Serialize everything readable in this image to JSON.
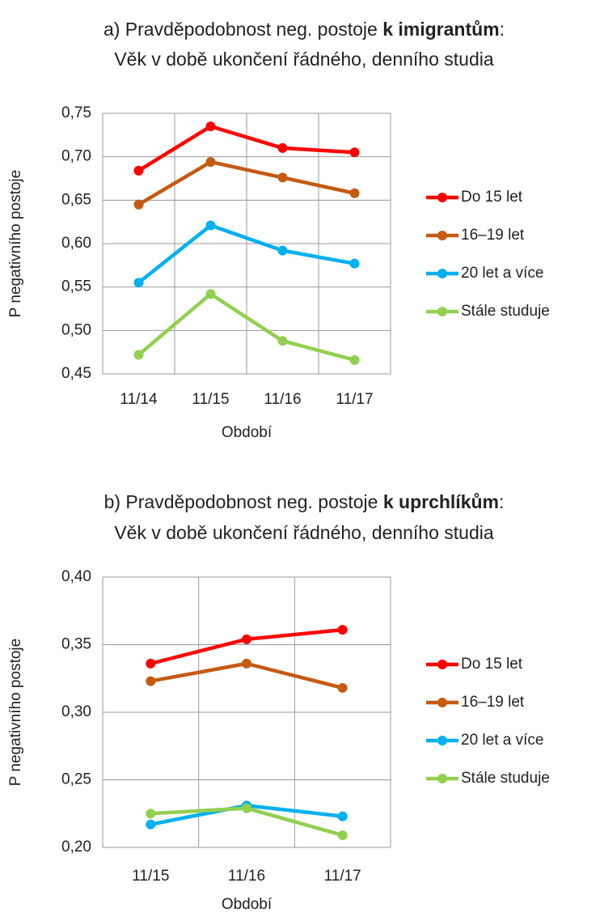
{
  "chart_data": [
    {
      "type": "line",
      "title": [
        "a) Pravděpodobnost neg. postoje ",
        "k imigrantům",
        ":"
      ],
      "subtitle": "Věk v době ukončení řádného, denního studia",
      "x_label": "Období",
      "y_label": "P negativního postoje",
      "categories": [
        "11/14",
        "11/15",
        "11/16",
        "11/17"
      ],
      "ylim": [
        0.45,
        0.75
      ],
      "yticks": [
        {
          "value": 0.45,
          "label": "0,45"
        },
        {
          "value": 0.5,
          "label": "0,50"
        },
        {
          "value": 0.55,
          "label": "0,55"
        },
        {
          "value": 0.6,
          "label": "0,60"
        },
        {
          "value": 0.65,
          "label": "0,65"
        },
        {
          "value": 0.7,
          "label": "0,70"
        },
        {
          "value": 0.75,
          "label": "0,75"
        }
      ],
      "grid": true,
      "legend": "right",
      "series": [
        {
          "name": "Do 15 let",
          "color": "#ff0000",
          "values": [
            0.684,
            0.735,
            0.71,
            0.705
          ]
        },
        {
          "name": "16–19 let",
          "color": "#c55a11",
          "values": [
            0.645,
            0.694,
            0.676,
            0.658
          ]
        },
        {
          "name": "20 let a více",
          "color": "#00b0f0",
          "values": [
            0.555,
            0.621,
            0.592,
            0.577
          ]
        },
        {
          "name": "Stále studuje",
          "color": "#92d050",
          "values": [
            0.472,
            0.542,
            0.488,
            0.466
          ]
        }
      ]
    },
    {
      "type": "line",
      "title": [
        "b) Pravděpodobnost neg. postoje ",
        "k uprchlíkům",
        ":"
      ],
      "subtitle": "Věk v době ukončení řádného, denního studia",
      "x_label": "Období",
      "y_label": "P negativního postoje",
      "categories": [
        "11/15",
        "11/16",
        "11/17"
      ],
      "ylim": [
        0.2,
        0.4
      ],
      "yticks": [
        {
          "value": 0.2,
          "label": "0,20"
        },
        {
          "value": 0.25,
          "label": "0,25"
        },
        {
          "value": 0.3,
          "label": "0,30"
        },
        {
          "value": 0.35,
          "label": "0,35"
        },
        {
          "value": 0.4,
          "label": "0,40"
        }
      ],
      "grid": true,
      "legend": "right",
      "series": [
        {
          "name": "Do 15 let",
          "color": "#ff0000",
          "values": [
            0.336,
            0.354,
            0.361
          ]
        },
        {
          "name": "16–19 let",
          "color": "#c55a11",
          "values": [
            0.323,
            0.336,
            0.318
          ]
        },
        {
          "name": "20 let a více",
          "color": "#00b0f0",
          "values": [
            0.217,
            0.231,
            0.223
          ]
        },
        {
          "name": "Stále studuje",
          "color": "#92d050",
          "values": [
            0.225,
            0.229,
            0.209
          ]
        }
      ]
    }
  ]
}
